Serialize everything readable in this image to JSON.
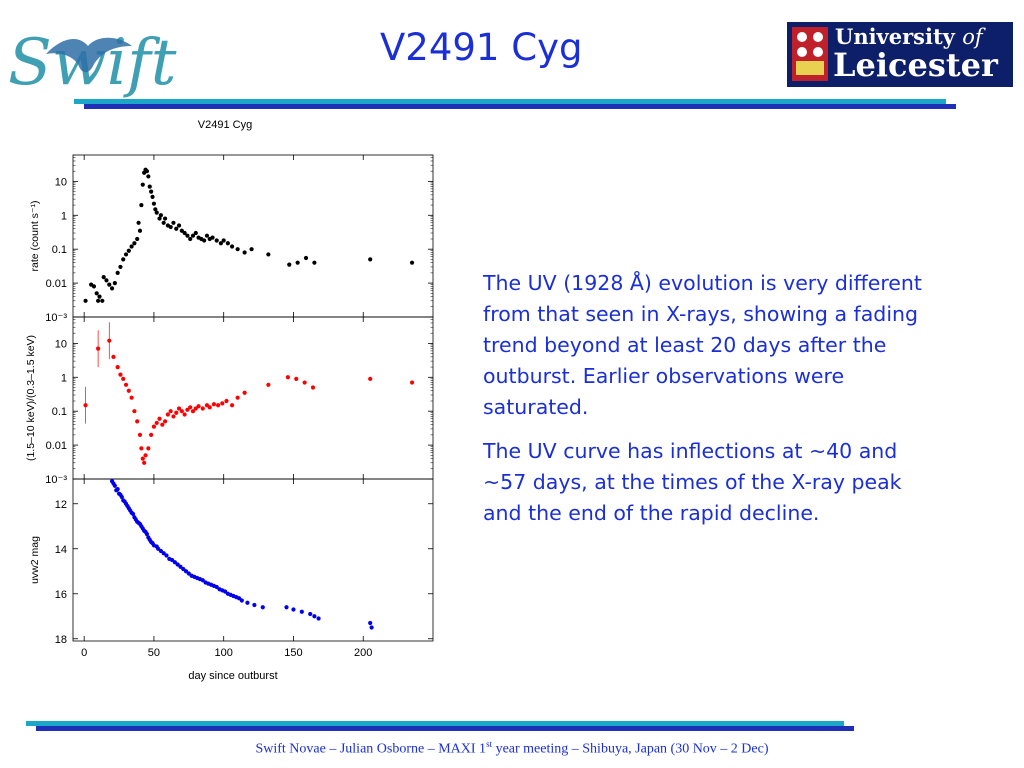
{
  "slide": {
    "title": "V2491 Cyg",
    "footer": {
      "before": "Swift Novae – Julian Osborne – MAXI 1",
      "sup": "st",
      "after": " year meeting – Shibuya, Japan (30 Nov – 2 Dec)"
    }
  },
  "logos": {
    "swift": "Swift",
    "leicester_line1": "University",
    "leicester_of": "of",
    "leicester_line2": "Leicester"
  },
  "body": {
    "paragraphs": [
      "The UV (1928 Å) evolution is very different from that seen in X-rays, showing a fading trend beyond at least 20 days after the outburst. Earlier observations were saturated.",
      "The UV curve has inflections at ~40 and ~57 days, at the times of the X-ray peak and the end of the rapid decline."
    ]
  },
  "colors": {
    "text": "#1a2fd6",
    "rule_top": "#1aa7c8",
    "rule_bottom": "#1f2fb8"
  },
  "chart_data": {
    "type": "scatter",
    "title": "V2491 Cyg",
    "xlabel": "day since outburst",
    "x_ticks": [
      0,
      50,
      100,
      150,
      200
    ],
    "xlim": [
      -8,
      250
    ],
    "panels": [
      {
        "ylabel": "rate (count s⁻¹)",
        "scale": "log",
        "ylim": [
          0.001,
          60
        ],
        "tick_values": [
          10,
          1,
          0.1,
          0.01,
          0.001
        ],
        "tick_labels": [
          "10",
          "1",
          "0.1",
          "0.01",
          "10⁻³"
        ],
        "color": "#000000",
        "points": [
          [
            1,
            0.003
          ],
          [
            5,
            0.009
          ],
          [
            7,
            0.008
          ],
          [
            9,
            0.005
          ],
          [
            10,
            0.003
          ],
          [
            11,
            0.004
          ],
          [
            13,
            0.003
          ],
          [
            14,
            0.015
          ],
          [
            16,
            0.012
          ],
          [
            18,
            0.009
          ],
          [
            20,
            0.007
          ],
          [
            22,
            0.01
          ],
          [
            24,
            0.02
          ],
          [
            26,
            0.03
          ],
          [
            28,
            0.05
          ],
          [
            30,
            0.07
          ],
          [
            32,
            0.09
          ],
          [
            34,
            0.12
          ],
          [
            36,
            0.15
          ],
          [
            38,
            0.2
          ],
          [
            39,
            0.6
          ],
          [
            40,
            0.35
          ],
          [
            41,
            2
          ],
          [
            42,
            8
          ],
          [
            43,
            18
          ],
          [
            44,
            22
          ],
          [
            45,
            20
          ],
          [
            46,
            14
          ],
          [
            47,
            7
          ],
          [
            48,
            5
          ],
          [
            49,
            3.5
          ],
          [
            50,
            2.2
          ],
          [
            51,
            1.5
          ],
          [
            52,
            1.2
          ],
          [
            54,
            0.8
          ],
          [
            55,
            1.0
          ],
          [
            57,
            0.6
          ],
          [
            58,
            0.8
          ],
          [
            60,
            0.5
          ],
          [
            62,
            0.45
          ],
          [
            64,
            0.6
          ],
          [
            66,
            0.4
          ],
          [
            68,
            0.5
          ],
          [
            70,
            0.35
          ],
          [
            72,
            0.3
          ],
          [
            74,
            0.25
          ],
          [
            76,
            0.2
          ],
          [
            78,
            0.25
          ],
          [
            80,
            0.3
          ],
          [
            82,
            0.22
          ],
          [
            84,
            0.2
          ],
          [
            86,
            0.18
          ],
          [
            88,
            0.25
          ],
          [
            90,
            0.2
          ],
          [
            92,
            0.22
          ],
          [
            95,
            0.18
          ],
          [
            98,
            0.15
          ],
          [
            100,
            0.18
          ],
          [
            103,
            0.15
          ],
          [
            106,
            0.12
          ],
          [
            110,
            0.1
          ],
          [
            115,
            0.08
          ],
          [
            120,
            0.1
          ],
          [
            132,
            0.07
          ],
          [
            147,
            0.035
          ],
          [
            153,
            0.04
          ],
          [
            159,
            0.055
          ],
          [
            165,
            0.04
          ],
          [
            205,
            0.05
          ],
          [
            235,
            0.04
          ]
        ]
      },
      {
        "ylabel": "(1.5–10 keV)/(0.3–1.5 keV)",
        "scale": "log",
        "ylim": [
          0.001,
          60
        ],
        "tick_values": [
          10,
          1,
          0.1,
          0.01,
          0.001
        ],
        "tick_labels": [
          "10",
          "1",
          "0.1",
          "0.01",
          "10⁻³"
        ],
        "color": "#ff0000",
        "points": [
          [
            1,
            0.15
          ],
          [
            10,
            7
          ],
          [
            18,
            12
          ],
          [
            21,
            4
          ],
          [
            24,
            2
          ],
          [
            26,
            1.2
          ],
          [
            28,
            0.9
          ],
          [
            30,
            0.6
          ],
          [
            32,
            0.4
          ],
          [
            34,
            0.25
          ],
          [
            36,
            0.1
          ],
          [
            38,
            0.05
          ],
          [
            40,
            0.02
          ],
          [
            41,
            0.008
          ],
          [
            42,
            0.004
          ],
          [
            43,
            0.003
          ],
          [
            44,
            0.005
          ],
          [
            46,
            0.008
          ],
          [
            48,
            0.02
          ],
          [
            50,
            0.035
          ],
          [
            52,
            0.045
          ],
          [
            54,
            0.06
          ],
          [
            56,
            0.04
          ],
          [
            58,
            0.05
          ],
          [
            60,
            0.08
          ],
          [
            62,
            0.1
          ],
          [
            64,
            0.07
          ],
          [
            66,
            0.09
          ],
          [
            68,
            0.12
          ],
          [
            70,
            0.1
          ],
          [
            72,
            0.08
          ],
          [
            74,
            0.11
          ],
          [
            76,
            0.13
          ],
          [
            78,
            0.1
          ],
          [
            80,
            0.12
          ],
          [
            82,
            0.14
          ],
          [
            85,
            0.12
          ],
          [
            88,
            0.15
          ],
          [
            90,
            0.13
          ],
          [
            93,
            0.16
          ],
          [
            96,
            0.15
          ],
          [
            99,
            0.17
          ],
          [
            102,
            0.2
          ],
          [
            106,
            0.15
          ],
          [
            110,
            0.25
          ],
          [
            115,
            0.35
          ],
          [
            132,
            0.6
          ],
          [
            146,
            1.0
          ],
          [
            152,
            0.9
          ],
          [
            158,
            0.7
          ],
          [
            164,
            0.5
          ],
          [
            205,
            0.9
          ],
          [
            235,
            0.7
          ]
        ]
      },
      {
        "ylabel": "uvw2 mag",
        "scale": "linear",
        "invert": true,
        "ylim": [
          18.1,
          10.9
        ],
        "tick_values": [
          12,
          14,
          16,
          18
        ],
        "tick_labels": [
          "12",
          "14",
          "16",
          "18"
        ],
        "color": "#0000ee",
        "points": [
          [
            20,
            11.0
          ],
          [
            21,
            11.1
          ],
          [
            22,
            11.2
          ],
          [
            23,
            11.4
          ],
          [
            24,
            11.35
          ],
          [
            25,
            11.55
          ],
          [
            26,
            11.6
          ],
          [
            27,
            11.7
          ],
          [
            28,
            11.85
          ],
          [
            29,
            11.9
          ],
          [
            30,
            12.0
          ],
          [
            31,
            12.1
          ],
          [
            32,
            12.2
          ],
          [
            33,
            12.3
          ],
          [
            34,
            12.4
          ],
          [
            35,
            12.45
          ],
          [
            36,
            12.6
          ],
          [
            37,
            12.7
          ],
          [
            38,
            12.8
          ],
          [
            39,
            12.85
          ],
          [
            40,
            12.9
          ],
          [
            41,
            13.0
          ],
          [
            42,
            13.1
          ],
          [
            43,
            13.2
          ],
          [
            44,
            13.25
          ],
          [
            45,
            13.35
          ],
          [
            46,
            13.5
          ],
          [
            47,
            13.6
          ],
          [
            48,
            13.7
          ],
          [
            49,
            13.75
          ],
          [
            50,
            13.85
          ],
          [
            52,
            13.9
          ],
          [
            53,
            14.0
          ],
          [
            55,
            14.1
          ],
          [
            57,
            14.2
          ],
          [
            59,
            14.3
          ],
          [
            61,
            14.45
          ],
          [
            63,
            14.5
          ],
          [
            65,
            14.6
          ],
          [
            67,
            14.7
          ],
          [
            69,
            14.8
          ],
          [
            71,
            14.9
          ],
          [
            73,
            15.0
          ],
          [
            75,
            15.1
          ],
          [
            77,
            15.2
          ],
          [
            79,
            15.25
          ],
          [
            81,
            15.3
          ],
          [
            83,
            15.35
          ],
          [
            85,
            15.4
          ],
          [
            87,
            15.5
          ],
          [
            89,
            15.55
          ],
          [
            91,
            15.6
          ],
          [
            93,
            15.65
          ],
          [
            95,
            15.7
          ],
          [
            97,
            15.8
          ],
          [
            99,
            15.85
          ],
          [
            101,
            15.9
          ],
          [
            103,
            16.0
          ],
          [
            105,
            16.05
          ],
          [
            107,
            16.1
          ],
          [
            109,
            16.15
          ],
          [
            111,
            16.2
          ],
          [
            113,
            16.3
          ],
          [
            117,
            16.4
          ],
          [
            122,
            16.5
          ],
          [
            128,
            16.6
          ],
          [
            145,
            16.6
          ],
          [
            150,
            16.7
          ],
          [
            156,
            16.8
          ],
          [
            162,
            16.9
          ],
          [
            165,
            17.0
          ],
          [
            168,
            17.1
          ],
          [
            205,
            17.3
          ],
          [
            206,
            17.5
          ]
        ]
      }
    ],
    "grid": false
  }
}
